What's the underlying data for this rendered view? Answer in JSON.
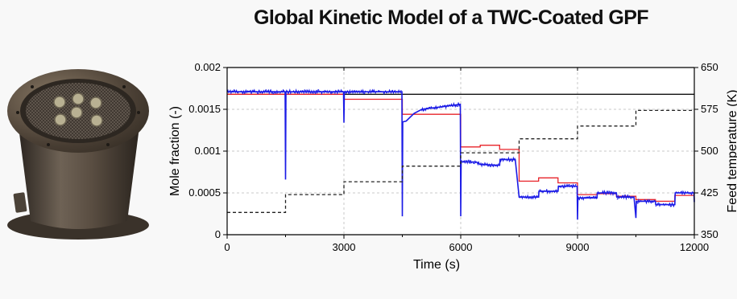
{
  "title": "Global Kinetic Model of a TWC-Coated GPF",
  "photo": {
    "icon": "twc-coated-gpf-canister-photo"
  },
  "colors": {
    "red": "#e8232a",
    "blue": "#1a1ae6",
    "black": "#111111",
    "dashed": "#222222",
    "grid": "#c8c8c8"
  },
  "chart_data": {
    "type": "line",
    "xlabel": "Time (s)",
    "ylabel": "Mole fraction (-)",
    "y2label": "Feed temperature (K)",
    "xlim": [
      0,
      12000
    ],
    "ylim": [
      0,
      0.002
    ],
    "y2lim": [
      350,
      650
    ],
    "xticks": [
      0,
      3000,
      6000,
      9000,
      12000
    ],
    "xtick_labels": [
      "0",
      "3000",
      "6000",
      "9000",
      "12000"
    ],
    "yticks": [
      0,
      0.0005,
      0.001,
      0.0015,
      0.002
    ],
    "ytick_labels": [
      "0",
      "0.0005",
      "0.001",
      "0.0015",
      "0.002"
    ],
    "y2ticks": [
      350,
      425,
      500,
      575,
      650
    ],
    "y2tick_labels": [
      "350",
      "425",
      "500",
      "575",
      "650"
    ],
    "grid": true,
    "series": [
      {
        "role": "inlet",
        "color": "black",
        "style": "solid",
        "axis": "left",
        "points": [
          [
            0,
            0.00168
          ],
          [
            12000,
            0.00168
          ]
        ]
      },
      {
        "role": "model",
        "color": "red",
        "style": "step",
        "axis": "left",
        "points": [
          [
            0,
            0.00168
          ],
          [
            3000,
            0.00168
          ],
          [
            3000,
            0.00162
          ],
          [
            4500,
            0.00162
          ],
          [
            4500,
            0.00144
          ],
          [
            6000,
            0.00144
          ],
          [
            6000,
            0.00105
          ],
          [
            6500,
            0.00105
          ],
          [
            6500,
            0.00107
          ],
          [
            7000,
            0.00107
          ],
          [
            7000,
            0.00102
          ],
          [
            7500,
            0.00102
          ],
          [
            7500,
            0.00064
          ],
          [
            8000,
            0.00064
          ],
          [
            8000,
            0.00068
          ],
          [
            8500,
            0.00068
          ],
          [
            8500,
            0.00062
          ],
          [
            9000,
            0.00062
          ],
          [
            9000,
            0.00048
          ],
          [
            9500,
            0.00048
          ],
          [
            9500,
            0.00049
          ],
          [
            10000,
            0.00049
          ],
          [
            10000,
            0.00046
          ],
          [
            10500,
            0.00046
          ],
          [
            10500,
            0.00042
          ],
          [
            11000,
            0.00042
          ],
          [
            11000,
            0.0004
          ],
          [
            11500,
            0.0004
          ],
          [
            11500,
            0.00047
          ],
          [
            12000,
            0.00047
          ]
        ]
      },
      {
        "role": "measured",
        "color": "blue",
        "style": "solid",
        "axis": "left",
        "points": [
          [
            0,
            0.00171
          ],
          [
            1490,
            0.00171
          ],
          [
            1500,
            0.00066
          ],
          [
            1510,
            0.00171
          ],
          [
            2990,
            0.00171
          ],
          [
            3000,
            0.00134
          ],
          [
            3010,
            0.00171
          ],
          [
            4490,
            0.00171
          ],
          [
            4500,
            0.00022
          ],
          [
            4510,
            0.00135
          ],
          [
            4600,
            0.00136
          ],
          [
            4800,
            0.00145
          ],
          [
            5000,
            0.0015
          ],
          [
            5500,
            0.00153
          ],
          [
            5990,
            0.00156
          ],
          [
            6000,
            0.00022
          ],
          [
            6010,
            0.00087
          ],
          [
            6400,
            0.00087
          ],
          [
            6500,
            0.00084
          ],
          [
            7000,
            0.00083
          ],
          [
            7010,
            0.0009
          ],
          [
            7400,
            0.0009
          ],
          [
            7500,
            0.00045
          ],
          [
            8000,
            0.00045
          ],
          [
            8010,
            0.00052
          ],
          [
            8500,
            0.00052
          ],
          [
            8510,
            0.00058
          ],
          [
            8990,
            0.00058
          ],
          [
            9000,
            0.00018
          ],
          [
            9010,
            0.00044
          ],
          [
            9500,
            0.00044
          ],
          [
            9510,
            0.0005
          ],
          [
            10000,
            0.0005
          ],
          [
            10010,
            0.00045
          ],
          [
            10450,
            0.00045
          ],
          [
            10500,
            0.0002
          ],
          [
            10510,
            0.0004
          ],
          [
            11000,
            0.0004
          ],
          [
            11010,
            0.00036
          ],
          [
            11500,
            0.00036
          ],
          [
            11510,
            0.0005
          ],
          [
            11990,
            0.0005
          ],
          [
            12000,
            0.00039
          ]
        ]
      },
      {
        "role": "feed-temperature",
        "color": "dashed",
        "style": "dashed",
        "axis": "right",
        "points": [
          [
            0,
            390
          ],
          [
            1500,
            390
          ],
          [
            1500,
            422
          ],
          [
            3000,
            422
          ],
          [
            3000,
            445
          ],
          [
            4500,
            445
          ],
          [
            4500,
            473
          ],
          [
            6000,
            473
          ],
          [
            6000,
            497
          ],
          [
            7500,
            497
          ],
          [
            7500,
            522
          ],
          [
            9000,
            522
          ],
          [
            9000,
            545
          ],
          [
            10500,
            545
          ],
          [
            10500,
            573
          ],
          [
            12000,
            573
          ]
        ]
      }
    ]
  }
}
